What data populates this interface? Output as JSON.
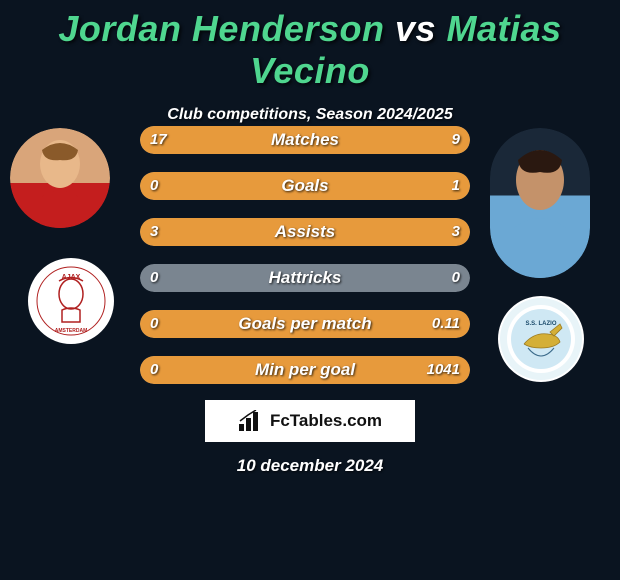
{
  "title": {
    "player1": "Jordan Henderson",
    "vs": "vs",
    "player2": "Matias Vecino",
    "color1": "#4fd68f",
    "colorVs": "#ffffff",
    "color2": "#4fd68f",
    "fontsize": 36
  },
  "subtitle": "Club competitions, Season 2024/2025",
  "players": {
    "left": {
      "photo_bg_top": "#d9a57a",
      "photo_bg_bottom": "#c41e1e",
      "club_name": "AJAX",
      "club_bg": "#ffffff",
      "club_text": "#b02020"
    },
    "right": {
      "photo_bg_top": "#c4926a",
      "photo_bg_bottom": "#6ba8d4",
      "club_name": "LAZIO",
      "club_bg": "#e8f4f8",
      "club_accent": "#87ceeb"
    }
  },
  "bars": {
    "bg_color": "#7a8590",
    "fill_left_color": "#e79a3c",
    "fill_right_color": "#e79a3c",
    "label_fontsize": 17,
    "value_fontsize": 15,
    "rows": [
      {
        "label": "Matches",
        "left_val": "17",
        "right_val": "9",
        "left_pct": 65,
        "right_pct": 35
      },
      {
        "label": "Goals",
        "left_val": "0",
        "right_val": "1",
        "left_pct": 0,
        "right_pct": 100
      },
      {
        "label": "Assists",
        "left_val": "3",
        "right_val": "3",
        "left_pct": 50,
        "right_pct": 50
      },
      {
        "label": "Hattricks",
        "left_val": "0",
        "right_val": "0",
        "left_pct": 50,
        "right_pct": 50,
        "empty": true
      },
      {
        "label": "Goals per match",
        "left_val": "0",
        "right_val": "0.11",
        "left_pct": 0,
        "right_pct": 100
      },
      {
        "label": "Min per goal",
        "left_val": "0",
        "right_val": "1041",
        "left_pct": 0,
        "right_pct": 100
      }
    ]
  },
  "footer": {
    "brand": "FcTables.com",
    "date": "10 december 2024",
    "badge_bg": "#ffffff",
    "badge_text_color": "#111111"
  },
  "background_color": "#0a1420"
}
